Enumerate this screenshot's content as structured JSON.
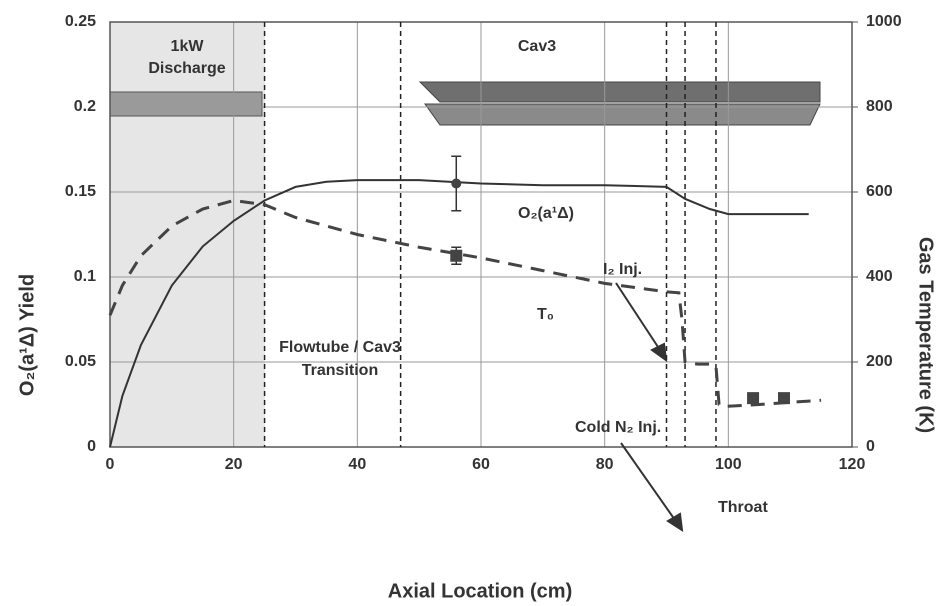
{
  "chart_data": {
    "type": "line",
    "xlabel": "Axial Location (cm)",
    "ylabel": "O₂(a¹Δ) Yield",
    "y2label": "Gas Temperature (K)",
    "xlim": [
      0,
      120
    ],
    "xticks": [
      0,
      20,
      40,
      60,
      80,
      100,
      120
    ],
    "ylim": [
      0,
      0.25
    ],
    "yticks": [
      0,
      0.05,
      0.1,
      0.15,
      0.2,
      0.25
    ],
    "y2lim": [
      0,
      1000
    ],
    "y2ticks": [
      0,
      200,
      400,
      600,
      800,
      1000
    ],
    "grid": true,
    "series": [
      {
        "name": "O₂(a¹Δ)",
        "color": "#333333",
        "style": "solid",
        "x": [
          0,
          2,
          5,
          10,
          15,
          20,
          25,
          30,
          35,
          40,
          50,
          60,
          70,
          80,
          90,
          93,
          97,
          100,
          113
        ],
        "values": [
          0,
          0.03,
          0.06,
          0.095,
          0.118,
          0.133,
          0.145,
          0.153,
          0.156,
          0.157,
          0.157,
          0.155,
          0.154,
          0.154,
          0.153,
          0.146,
          0.14,
          0.137,
          0.137
        ]
      },
      {
        "name": "T₀",
        "color": "#444444",
        "style": "dashed",
        "axis": "y2",
        "x": [
          0,
          2,
          5,
          10,
          15,
          20,
          25,
          30,
          40,
          50,
          60,
          70,
          80,
          90,
          92,
          92.5,
          93,
          95,
          97,
          98,
          98.5,
          99,
          105,
          110,
          115
        ],
        "values": [
          310,
          380,
          450,
          520,
          560,
          580,
          570,
          540,
          500,
          470,
          445,
          415,
          385,
          365,
          363,
          300,
          200,
          195,
          195,
          190,
          100,
          95,
          100,
          105,
          110
        ]
      }
    ],
    "measurements": [
      {
        "marker": "circle",
        "axis": "y",
        "x": [
          56
        ],
        "values": [
          0.155
        ],
        "errors": [
          0.016
        ]
      },
      {
        "marker": "square",
        "axis": "y2",
        "x": [
          56,
          104,
          109
        ],
        "values": [
          450,
          115,
          115
        ],
        "errors": [
          20,
          null,
          null
        ]
      }
    ],
    "vlines": [
      25,
      47,
      90,
      93,
      98
    ],
    "annotations": {
      "discharge": [
        "1kW",
        "Discharge"
      ],
      "cav3": "Cav3",
      "transition": [
        "Flowtube / Cav3",
        "Transition"
      ],
      "i2": "I₂ Inj.",
      "n2": "Cold N₂ Inj.",
      "throat": "Throat"
    }
  }
}
